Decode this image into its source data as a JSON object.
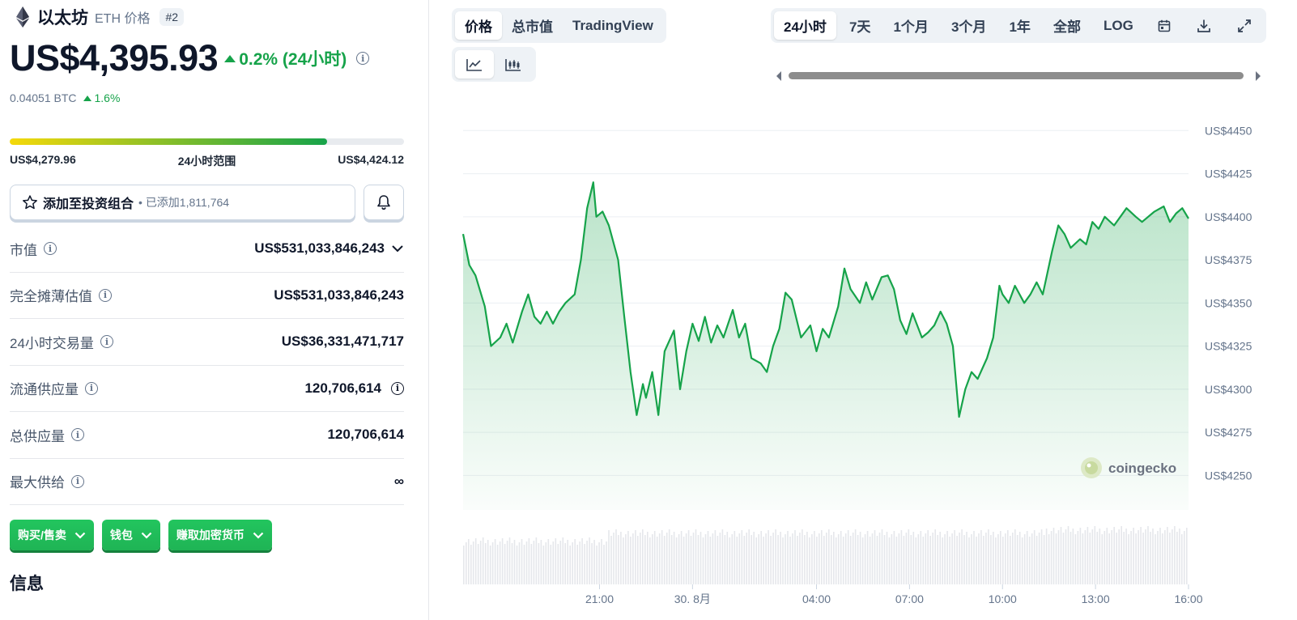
{
  "coin": {
    "name": "以太坊",
    "symbol_label": "ETH 价格",
    "rank": "#2",
    "price": "US$4,395.93",
    "change_24h": "0.2% (24小时)",
    "btc_price": "0.04051 BTC",
    "btc_change": "1.6%"
  },
  "range": {
    "low": "US$4,279.96",
    "label": "24小时范围",
    "high": "US$4,424.12",
    "fill_fraction": 0.805
  },
  "portfolio": {
    "add_label": "添加至投资组合",
    "added_count": "已添加1,811,764"
  },
  "stats": [
    {
      "label": "市值",
      "value": "US$531,033,846,243"
    },
    {
      "label": "完全摊薄估值",
      "value": "US$531,033,846,243"
    },
    {
      "label": "24小时交易量",
      "value": "US$36,331,471,717"
    },
    {
      "label": "流通供应量",
      "value": "120,706,614"
    },
    {
      "label": "总供应量",
      "value": "120,706,614"
    },
    {
      "label": "最大供给",
      "value": "∞"
    }
  ],
  "action_buttons": [
    "购买/售卖",
    "钱包",
    "赚取加密货币"
  ],
  "section_title": "信息",
  "chart_tabs": [
    "价格",
    "总市值",
    "TradingView"
  ],
  "chart_tab_active": "价格",
  "chart_type_icons": [
    "line-chart-icon",
    "candlestick-icon"
  ],
  "time_ranges": [
    "24小时",
    "7天",
    "1个月",
    "3个月",
    "1年",
    "全部",
    "LOG"
  ],
  "time_range_active": "24小时",
  "toolbar_icons": [
    "calendar-icon",
    "download-icon",
    "expand-icon"
  ],
  "colors": {
    "up_green": "#16a34a",
    "chart_line": "#16a34a",
    "button_green": "#22c55e",
    "text_dark": "#0f172a",
    "text_muted": "#64748b"
  },
  "watermark": "coingecko",
  "chart_data": {
    "type": "area",
    "title": "",
    "xlabel": "",
    "ylabel": "",
    "ylim": [
      4230,
      4460
    ],
    "x_tick_labels": [
      "21:00",
      "30. 8月",
      "04:00",
      "07:00",
      "10:00",
      "13:00",
      "16:00"
    ],
    "y_tick_labels": [
      "US$4450",
      "US$4425",
      "US$4400",
      "US$4375",
      "US$4350",
      "US$4325",
      "US$4300",
      "US$4275",
      "US$4250"
    ],
    "y_ticks": [
      4450,
      4425,
      4400,
      4375,
      4350,
      4325,
      4300,
      4275,
      4250
    ],
    "x_ticks_hours": [
      21,
      24,
      28,
      31,
      34,
      37,
      40
    ],
    "x_range_hours": [
      16.6,
      40.0
    ],
    "series": [
      {
        "x": [
          16.6,
          16.8,
          17.0,
          17.3,
          17.5,
          17.8,
          18.0,
          18.2,
          18.5,
          18.7,
          18.9,
          19.1,
          19.3,
          19.5,
          19.7,
          19.9,
          20.2,
          20.4,
          20.6,
          20.8,
          20.9,
          21.1,
          21.3,
          21.6,
          21.8,
          22.0,
          22.2,
          22.4,
          22.5,
          22.7,
          22.9,
          23.1,
          23.4,
          23.6,
          23.8,
          24.0,
          24.2,
          24.4,
          24.6,
          24.8,
          25.0,
          25.3,
          25.5,
          25.7,
          25.9,
          26.2,
          26.4,
          26.6,
          26.8,
          27.0,
          27.2,
          27.5,
          27.8,
          28.0,
          28.2,
          28.4,
          28.7,
          28.9,
          29.1,
          29.4,
          29.6,
          29.8,
          30.1,
          30.3,
          30.5,
          30.7,
          30.9,
          31.1,
          31.4,
          31.6,
          31.8,
          32.0,
          32.2,
          32.4,
          32.6,
          32.8,
          33.0,
          33.2,
          33.5,
          33.7,
          33.9,
          34.0,
          34.2,
          34.4,
          34.7,
          34.9,
          35.1,
          35.3,
          35.6,
          35.8,
          36.0,
          36.2,
          36.5,
          36.7,
          36.9,
          37.1,
          37.3,
          37.6,
          37.8,
          38.0,
          38.3,
          38.5,
          38.7,
          38.9,
          39.2,
          39.4,
          39.6,
          39.8,
          40.0
        ],
        "y": [
          4390,
          4372,
          4366,
          4348,
          4325,
          4330,
          4338,
          4327,
          4345,
          4355,
          4342,
          4338,
          4345,
          4338,
          4345,
          4350,
          4355,
          4375,
          4405,
          4420,
          4400,
          4403,
          4395,
          4375,
          4342,
          4310,
          4285,
          4303,
          4295,
          4310,
          4285,
          4322,
          4334,
          4300,
          4322,
          4338,
          4328,
          4342,
          4327,
          4337,
          4330,
          4346,
          4330,
          4338,
          4318,
          4315,
          4310,
          4325,
          4335,
          4356,
          4352,
          4330,
          4337,
          4322,
          4335,
          4330,
          4348,
          4370,
          4358,
          4350,
          4362,
          4352,
          4365,
          4366,
          4358,
          4340,
          4332,
          4344,
          4330,
          4333,
          4337,
          4345,
          4338,
          4325,
          4284,
          4300,
          4310,
          4306,
          4318,
          4330,
          4360,
          4355,
          4350,
          4360,
          4350,
          4355,
          4362,
          4355,
          4380,
          4395,
          4390,
          4382,
          4387,
          4384,
          4397,
          4393,
          4400,
          4395,
          4400,
          4405,
          4400,
          4397,
          4400,
          4403,
          4406,
          4397,
          4402,
          4405,
          4399
        ]
      }
    ],
    "volume_level": "roughly flat"
  }
}
